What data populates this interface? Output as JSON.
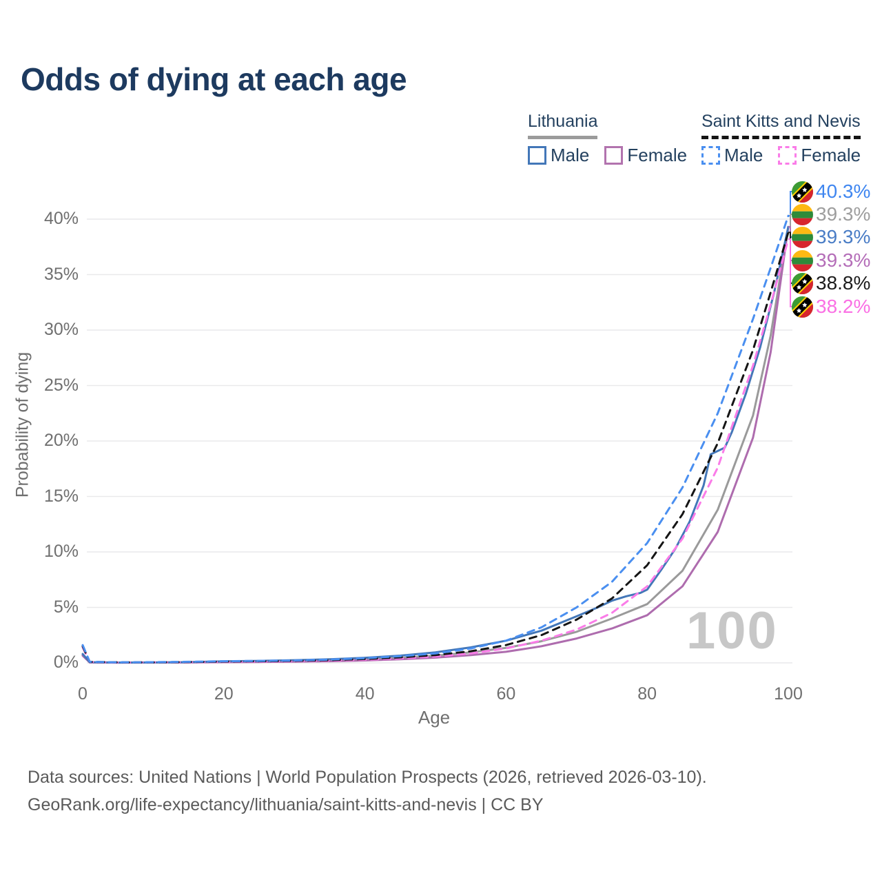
{
  "title": "Odds of dying at each age",
  "watermark": "100",
  "legend": {
    "groups": [
      {
        "name": "Lithuania",
        "underline_style": "solid",
        "underline_color": "#9b9b9b",
        "items": [
          {
            "label": "Male",
            "color": "#4377b8",
            "dash": false
          },
          {
            "label": "Female",
            "color": "#b273ae",
            "dash": false
          }
        ]
      },
      {
        "name": "Saint Kitts and Nevis",
        "underline_style": "dashed",
        "underline_color": "#141414",
        "items": [
          {
            "label": "Male",
            "color": "#4a8ff0",
            "dash": true
          },
          {
            "label": "Female",
            "color": "#fa7ce8",
            "dash": true
          }
        ]
      }
    ]
  },
  "end_labels": [
    {
      "value": "40.3%",
      "color": "#3f86f0",
      "flag": "saint-kitts-and-nevis",
      "series_key": "skn_male"
    },
    {
      "value": "39.3%",
      "color": "#9e9e9e",
      "flag": "lithuania",
      "series_key": "lt_total"
    },
    {
      "value": "39.3%",
      "color": "#4a7dc6",
      "flag": "lithuania",
      "series_key": "lt_male"
    },
    {
      "value": "39.3%",
      "color": "#b46db8",
      "flag": "lithuania",
      "series_key": "lt_female"
    },
    {
      "value": "38.8%",
      "color": "#1c1c1c",
      "flag": "saint-kitts-and-nevis",
      "series_key": "skn_total"
    },
    {
      "value": "38.2%",
      "color": "#fa70e4",
      "flag": "saint-kitts-and-nevis",
      "series_key": "skn_female"
    }
  ],
  "footer": {
    "line1": "Data sources: United Nations | World Population Prospects (2026, retrieved 2026-03-10).",
    "line2": "GeoRank.org/life-expectancy/lithuania/saint-kitts-and-nevis | CC BY"
  },
  "chart_data": {
    "type": "line",
    "title": "Odds of dying at each age",
    "xlabel": "Age",
    "ylabel": "Probability of dying",
    "xlim": [
      0,
      100
    ],
    "ylim": [
      0,
      42
    ],
    "grid": true,
    "legend_position": "top-right",
    "x_ticks": [
      {
        "label": "0",
        "value": 0
      },
      {
        "label": "20",
        "value": 20
      },
      {
        "label": "40",
        "value": 40
      },
      {
        "label": "60",
        "value": 60
      },
      {
        "label": "80",
        "value": 80
      },
      {
        "label": "100",
        "value": 100
      }
    ],
    "y_ticks": [
      {
        "label": "0%",
        "value": 0
      },
      {
        "label": "5%",
        "value": 5
      },
      {
        "label": "10%",
        "value": 10
      },
      {
        "label": "15%",
        "value": 15
      },
      {
        "label": "20%",
        "value": 20
      },
      {
        "label": "25%",
        "value": 25
      },
      {
        "label": "30%",
        "value": 30
      },
      {
        "label": "35%",
        "value": 35
      },
      {
        "label": "40%",
        "value": 40
      }
    ],
    "series": [
      {
        "name": "Lithuania — Total",
        "key": "lt_total",
        "color": "#9a9a9a",
        "dash": false,
        "x": [
          0,
          1,
          5,
          10,
          15,
          20,
          25,
          30,
          35,
          40,
          45,
          50,
          55,
          60,
          65,
          70,
          75,
          80,
          85,
          90,
          95,
          97.5,
          100
        ],
        "values": [
          0.7,
          0.05,
          0.03,
          0.03,
          0.05,
          0.1,
          0.13,
          0.17,
          0.23,
          0.32,
          0.45,
          0.65,
          0.95,
          1.35,
          1.95,
          2.8,
          4.0,
          5.3,
          8.3,
          13.8,
          22.3,
          29.5,
          39.3
        ]
      },
      {
        "name": "Lithuania — Female",
        "key": "lt_female",
        "color": "#ae6cae",
        "dash": false,
        "x": [
          0,
          1,
          5,
          10,
          15,
          20,
          25,
          30,
          35,
          40,
          45,
          50,
          55,
          60,
          65,
          70,
          75,
          80,
          85,
          90,
          95,
          97.5,
          100
        ],
        "values": [
          0.65,
          0.04,
          0.02,
          0.03,
          0.04,
          0.06,
          0.08,
          0.11,
          0.15,
          0.22,
          0.32,
          0.47,
          0.7,
          1.0,
          1.5,
          2.2,
          3.1,
          4.3,
          6.9,
          11.8,
          20.3,
          28.0,
          39.3
        ]
      },
      {
        "name": "Lithuania — Male",
        "key": "lt_male",
        "color": "#4377b8",
        "dash": false,
        "x": [
          0,
          1,
          5,
          10,
          15,
          20,
          25,
          30,
          35,
          40,
          45,
          50,
          55,
          60,
          65,
          70,
          73,
          75,
          77,
          79,
          80,
          82,
          84,
          86,
          88,
          89,
          90,
          91,
          92,
          94,
          96,
          98,
          100
        ],
        "values": [
          0.8,
          0.06,
          0.03,
          0.04,
          0.07,
          0.14,
          0.18,
          0.24,
          0.33,
          0.46,
          0.65,
          0.95,
          1.4,
          2.0,
          2.9,
          4.2,
          5.0,
          5.6,
          6.0,
          6.3,
          6.6,
          8.4,
          10.3,
          12.7,
          16.0,
          18.8,
          19.1,
          19.4,
          20.8,
          24.3,
          28.4,
          33.4,
          39.3
        ]
      },
      {
        "name": "Saint Kitts and Nevis — Female",
        "key": "skn_female",
        "color": "#fa7ce8",
        "dash": true,
        "x": [
          0,
          1,
          5,
          10,
          15,
          20,
          25,
          30,
          35,
          40,
          45,
          50,
          55,
          60,
          65,
          70,
          75,
          80,
          85,
          90,
          95,
          97.5,
          100
        ],
        "values": [
          1.4,
          0.08,
          0.04,
          0.05,
          0.07,
          0.09,
          0.11,
          0.14,
          0.2,
          0.28,
          0.4,
          0.58,
          0.85,
          1.3,
          2.0,
          3.0,
          4.5,
          6.9,
          11.2,
          17.6,
          26.8,
          32.3,
          38.2
        ]
      },
      {
        "name": "Saint Kitts and Nevis — Total",
        "key": "skn_total",
        "color": "#151515",
        "dash": true,
        "x": [
          0,
          1,
          5,
          10,
          15,
          20,
          25,
          30,
          35,
          40,
          45,
          50,
          55,
          60,
          65,
          70,
          75,
          80,
          85,
          90,
          95,
          97.5,
          100
        ],
        "values": [
          1.5,
          0.09,
          0.05,
          0.05,
          0.08,
          0.12,
          0.15,
          0.18,
          0.25,
          0.35,
          0.5,
          0.7,
          1.05,
          1.6,
          2.5,
          3.9,
          5.8,
          8.8,
          13.4,
          19.8,
          28.2,
          33.4,
          38.8
        ]
      },
      {
        "name": "Saint Kitts and Nevis — Male",
        "key": "skn_male",
        "color": "#4a8ff0",
        "dash": true,
        "x": [
          0,
          1,
          5,
          10,
          15,
          20,
          25,
          30,
          35,
          40,
          45,
          50,
          55,
          60,
          65,
          70,
          75,
          80,
          85,
          90,
          95,
          97.5,
          100
        ],
        "values": [
          1.6,
          0.1,
          0.05,
          0.06,
          0.1,
          0.15,
          0.18,
          0.22,
          0.3,
          0.42,
          0.6,
          0.85,
          1.3,
          2.0,
          3.2,
          5.0,
          7.3,
          10.8,
          15.8,
          22.5,
          31.0,
          35.6,
          40.3
        ]
      }
    ]
  }
}
